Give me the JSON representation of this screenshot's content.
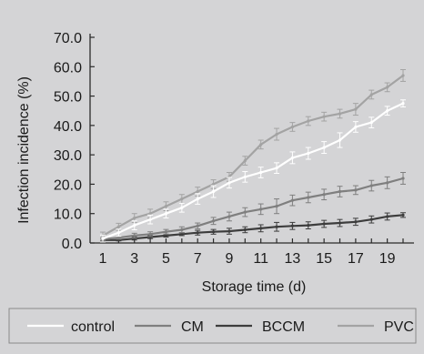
{
  "chart_data": {
    "type": "line",
    "xlabel": "Storage time (d)",
    "ylabel": "Infection incidence (%)",
    "xlim": [
      1,
      20
    ],
    "ylim": [
      0,
      70
    ],
    "x_ticks": [
      "1",
      "3",
      "5",
      "7",
      "9",
      "11",
      "13",
      "15",
      "17",
      "19"
    ],
    "y_ticks": [
      "0.0",
      "10.0",
      "20.0",
      "30.0",
      "40.0",
      "50.0",
      "60.0",
      "70.0"
    ],
    "grid": false,
    "legend_position": "bottom",
    "x": [
      1,
      2,
      3,
      4,
      5,
      6,
      7,
      8,
      9,
      10,
      11,
      12,
      13,
      14,
      15,
      16,
      17,
      18,
      19,
      20
    ],
    "series": [
      {
        "name": "control",
        "color": "#ffffff",
        "values": [
          1.5,
          3.5,
          6,
          8,
          10,
          12,
          15,
          17.5,
          20.5,
          22.5,
          24,
          25.5,
          29,
          30.5,
          32.5,
          35,
          39.5,
          41,
          45,
          47.5
        ],
        "error": [
          1.2,
          1.2,
          1.5,
          1.5,
          1.5,
          1.5,
          1.8,
          2,
          1.8,
          1.8,
          1.8,
          1.8,
          2,
          2,
          2,
          2.5,
          1.8,
          1.8,
          1.5,
          1.2
        ]
      },
      {
        "name": "CM",
        "color": "#7f7f7f",
        "values": [
          1.3,
          1.8,
          2.5,
          3,
          3.8,
          4.5,
          5.8,
          7.5,
          9,
          10.5,
          11.5,
          12.5,
          14.5,
          15.5,
          16.5,
          17.5,
          18,
          19.5,
          20.5,
          22
        ],
        "error": [
          0.5,
          0.5,
          0.8,
          0.8,
          0.8,
          1,
          1,
          1.2,
          1.5,
          1.5,
          1.8,
          2.5,
          1.8,
          1.8,
          1.8,
          1.8,
          1.5,
          1.8,
          2,
          2
        ]
      },
      {
        "name": "BCCM",
        "color": "#3d3d3d",
        "values": [
          1,
          1,
          1.5,
          2,
          2.5,
          3,
          3.5,
          3.8,
          4,
          4.5,
          5,
          5.5,
          5.8,
          6,
          6.5,
          6.8,
          7.2,
          8,
          9,
          9.5
        ],
        "error": [
          0.3,
          0.3,
          0.5,
          0.5,
          0.5,
          0.5,
          0.8,
          0.8,
          1,
          1,
          1.2,
          1.5,
          1.2,
          1.2,
          1.2,
          1.2,
          1.2,
          1.2,
          1.2,
          0.8
        ]
      },
      {
        "name": "PVC",
        "color": "#a3a3a3",
        "values": [
          2.5,
          5.5,
          8.5,
          10,
          12.5,
          15,
          17.5,
          20,
          22.5,
          28,
          33.5,
          37,
          39.5,
          41.5,
          43,
          44,
          45.5,
          50.5,
          53,
          57
        ],
        "error": [
          1.2,
          1.2,
          1.5,
          1.5,
          1.5,
          1.5,
          1.5,
          1.5,
          1.5,
          1.5,
          1.5,
          2,
          1.5,
          1.5,
          1.5,
          1.5,
          2,
          1.5,
          1.5,
          2
        ]
      }
    ]
  }
}
